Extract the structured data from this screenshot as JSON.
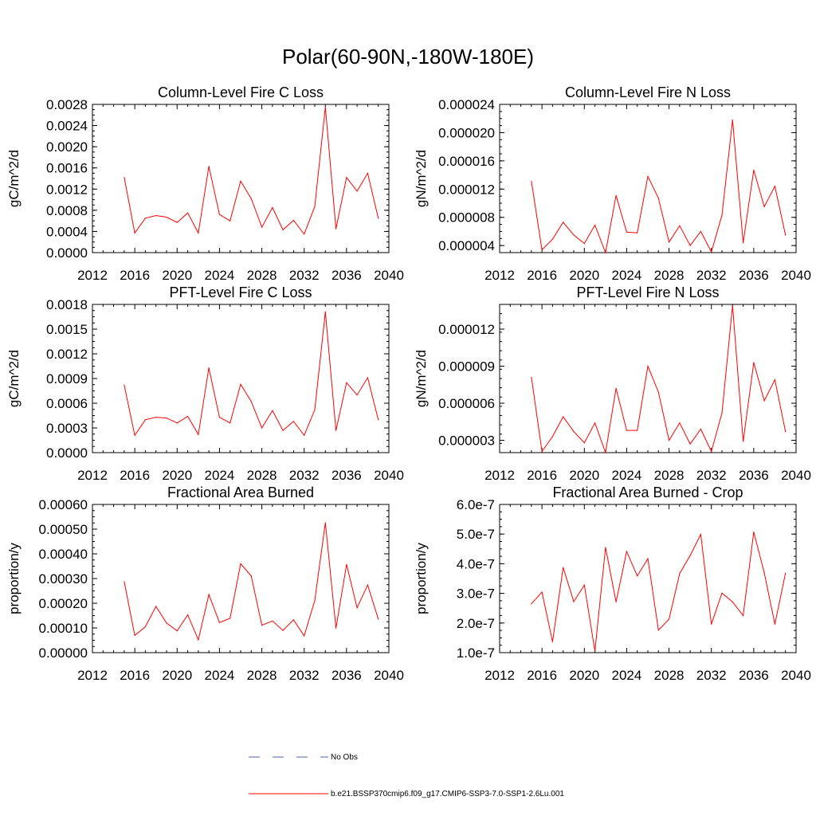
{
  "title": "Polar(60-90N,-180W-180E)",
  "legend": [
    {
      "label": "No Obs",
      "color": "#5060b0",
      "style": "dashed"
    },
    {
      "label": "b.e21.BSSP370cmip6.f09_g17.CMIP6-SSP3-7.0-SSP1-2.6Lu.001",
      "color": "#ff0000",
      "style": "solid"
    }
  ],
  "colors": {
    "series": "#ff0000",
    "axis": "#000000"
  },
  "chart_data": [
    {
      "type": "line",
      "title": "Column-Level Fire C Loss",
      "ylabel": "gC/m^2/d",
      "xlim": [
        2012,
        2040
      ],
      "ylim": [
        0,
        0.0028
      ],
      "xticks": [
        "2012",
        "2016",
        "2020",
        "2024",
        "2028",
        "2032",
        "2036",
        "2040"
      ],
      "yticks": [
        "0.0000",
        "0.0004",
        "0.0008",
        "0.0012",
        "0.0016",
        "0.0020",
        "0.0024",
        "0.0028"
      ],
      "x": [
        2015,
        2016,
        2017,
        2018,
        2019,
        2020,
        2021,
        2022,
        2023,
        2024,
        2025,
        2026,
        2027,
        2028,
        2029,
        2030,
        2031,
        2032,
        2033,
        2034,
        2035,
        2036,
        2037,
        2038,
        2039
      ],
      "series": [
        {
          "values": [
            0.00142,
            0.00037,
            0.00065,
            0.0007,
            0.00067,
            0.00057,
            0.00075,
            0.00037,
            0.00163,
            0.00072,
            0.0006,
            0.00135,
            0.00102,
            0.00048,
            0.00085,
            0.00043,
            0.00061,
            0.00035,
            0.00087,
            0.00275,
            0.00045,
            0.00142,
            0.00116,
            0.0015,
            0.00065
          ]
        }
      ]
    },
    {
      "type": "line",
      "title": "Column-Level Fire N Loss",
      "ylabel": "gN/m^2/d",
      "xlim": [
        2012,
        2040
      ],
      "ylim": [
        3e-06,
        2.4e-05
      ],
      "xticks": [
        "2012",
        "2016",
        "2020",
        "2024",
        "2028",
        "2032",
        "2036",
        "2040"
      ],
      "yticks": [
        "0.000004",
        "0.000008",
        "0.000012",
        "0.000016",
        "0.000020",
        "0.000024"
      ],
      "x": [
        2015,
        2016,
        2017,
        2018,
        2019,
        2020,
        2021,
        2022,
        2023,
        2024,
        2025,
        2026,
        2027,
        2028,
        2029,
        2030,
        2031,
        2032,
        2033,
        2034,
        2035,
        2036,
        2037,
        2038,
        2039
      ],
      "series": [
        {
          "values": [
            1.31e-05,
            3.4e-06,
            4.9e-06,
            7.3e-06,
            5.5e-06,
            4.3e-06,
            6.9e-06,
            3e-06,
            1.11e-05,
            5.9e-06,
            5.8e-06,
            1.38e-05,
            1.07e-05,
            4.5e-06,
            6.8e-06,
            4e-06,
            6e-06,
            3.1e-06,
            8.3e-06,
            2.18e-05,
            4.4e-06,
            1.47e-05,
            9.5e-06,
            1.24e-05,
            5.5e-06
          ]
        }
      ]
    },
    {
      "type": "line",
      "title": "PFT-Level Fire C Loss",
      "ylabel": "gC/m^2/d",
      "xlim": [
        2012,
        2040
      ],
      "ylim": [
        0,
        0.0018
      ],
      "xticks": [
        "2012",
        "2016",
        "2020",
        "2024",
        "2028",
        "2032",
        "2036",
        "2040"
      ],
      "yticks": [
        "0.0000",
        "0.0003",
        "0.0006",
        "0.0009",
        "0.0012",
        "0.0015",
        "0.0018"
      ],
      "x": [
        2015,
        2016,
        2017,
        2018,
        2019,
        2020,
        2021,
        2022,
        2023,
        2024,
        2025,
        2026,
        2027,
        2028,
        2029,
        2030,
        2031,
        2032,
        2033,
        2034,
        2035,
        2036,
        2037,
        2038,
        2039
      ],
      "series": [
        {
          "values": [
            0.00082,
            0.00021,
            0.0004,
            0.00043,
            0.00042,
            0.00036,
            0.00044,
            0.00022,
            0.00103,
            0.00043,
            0.00036,
            0.00083,
            0.00062,
            0.0003,
            0.00051,
            0.00027,
            0.00038,
            0.00021,
            0.00052,
            0.00171,
            0.00027,
            0.00085,
            0.0007,
            0.00091,
            0.0004
          ]
        }
      ]
    },
    {
      "type": "line",
      "title": "PFT-Level Fire N Loss",
      "ylabel": "gN/m^2/d",
      "xlim": [
        2012,
        2040
      ],
      "ylim": [
        2e-06,
        1.4e-05
      ],
      "xticks": [
        "2012",
        "2016",
        "2020",
        "2024",
        "2028",
        "2032",
        "2036",
        "2040"
      ],
      "yticks": [
        "0.000003",
        "0.000006",
        "0.000009",
        "0.000012"
      ],
      "x": [
        2015,
        2016,
        2017,
        2018,
        2019,
        2020,
        2021,
        2022,
        2023,
        2024,
        2025,
        2026,
        2027,
        2028,
        2029,
        2030,
        2031,
        2032,
        2033,
        2034,
        2035,
        2036,
        2037,
        2038,
        2039
      ],
      "series": [
        {
          "values": [
            8.1e-06,
            2.1e-06,
            3.3e-06,
            4.9e-06,
            3.7e-06,
            2.8e-06,
            4.4e-06,
            2e-06,
            7.2e-06,
            3.8e-06,
            3.8e-06,
            9e-06,
            6.9e-06,
            3e-06,
            4.4e-06,
            2.7e-06,
            3.9e-06,
            2.1e-06,
            5.2e-06,
            1.39e-05,
            2.9e-06,
            9.3e-06,
            6.2e-06,
            7.9e-06,
            3.7e-06
          ]
        }
      ]
    },
    {
      "type": "line",
      "title": "Fractional Area Burned",
      "ylabel": "proportion/y",
      "xlim": [
        2012,
        2040
      ],
      "ylim": [
        0,
        0.0006
      ],
      "xticks": [
        "2012",
        "2016",
        "2020",
        "2024",
        "2028",
        "2032",
        "2036",
        "2040"
      ],
      "yticks": [
        "0.00000",
        "0.00010",
        "0.00020",
        "0.00030",
        "0.00040",
        "0.00050",
        "0.00060"
      ],
      "x": [
        2015,
        2016,
        2017,
        2018,
        2019,
        2020,
        2021,
        2022,
        2023,
        2024,
        2025,
        2026,
        2027,
        2028,
        2029,
        2030,
        2031,
        2032,
        2033,
        2034,
        2035,
        2036,
        2037,
        2038,
        2039
      ],
      "series": [
        {
          "values": [
            0.000287,
            7e-05,
            0.000105,
            0.000187,
            0.00012,
            8.8e-05,
            0.000153,
            5.2e-05,
            0.000235,
            0.000122,
            0.000139,
            0.00036,
            0.00031,
            0.000111,
            0.000128,
            9e-05,
            0.000133,
            6.8e-05,
            0.000211,
            0.000526,
            9.9e-05,
            0.000357,
            0.000182,
            0.000274,
            0.000136
          ]
        }
      ]
    },
    {
      "type": "line",
      "title": "Fractional Area Burned - Crop",
      "ylabel": "proportion/y",
      "xlim": [
        2012,
        2040
      ],
      "ylim": [
        1e-07,
        6e-07
      ],
      "xticks": [
        "2012",
        "2016",
        "2020",
        "2024",
        "2028",
        "2032",
        "2036",
        "2040"
      ],
      "yticks": [
        "1.0e-7",
        "2.0e-7",
        "3.0e-7",
        "4.0e-7",
        "5.0e-7",
        "6.0e-7"
      ],
      "x": [
        2015,
        2016,
        2017,
        2018,
        2019,
        2020,
        2021,
        2022,
        2023,
        2024,
        2025,
        2026,
        2027,
        2028,
        2029,
        2030,
        2031,
        2032,
        2033,
        2034,
        2035,
        2036,
        2037,
        2038,
        2039
      ],
      "series": [
        {
          "values": [
            2.65e-07,
            3.04e-07,
            1.37e-07,
            3.87e-07,
            2.72e-07,
            3.28e-07,
            1.05e-07,
            4.55e-07,
            2.71e-07,
            4.41e-07,
            3.59e-07,
            4.17e-07,
            1.76e-07,
            2.13e-07,
            3.67e-07,
            4.28e-07,
            4.99e-07,
            1.96e-07,
            3.01e-07,
            2.71e-07,
            2.25e-07,
            5.07e-07,
            3.69e-07,
            1.96e-07,
            3.68e-07
          ]
        }
      ]
    }
  ]
}
